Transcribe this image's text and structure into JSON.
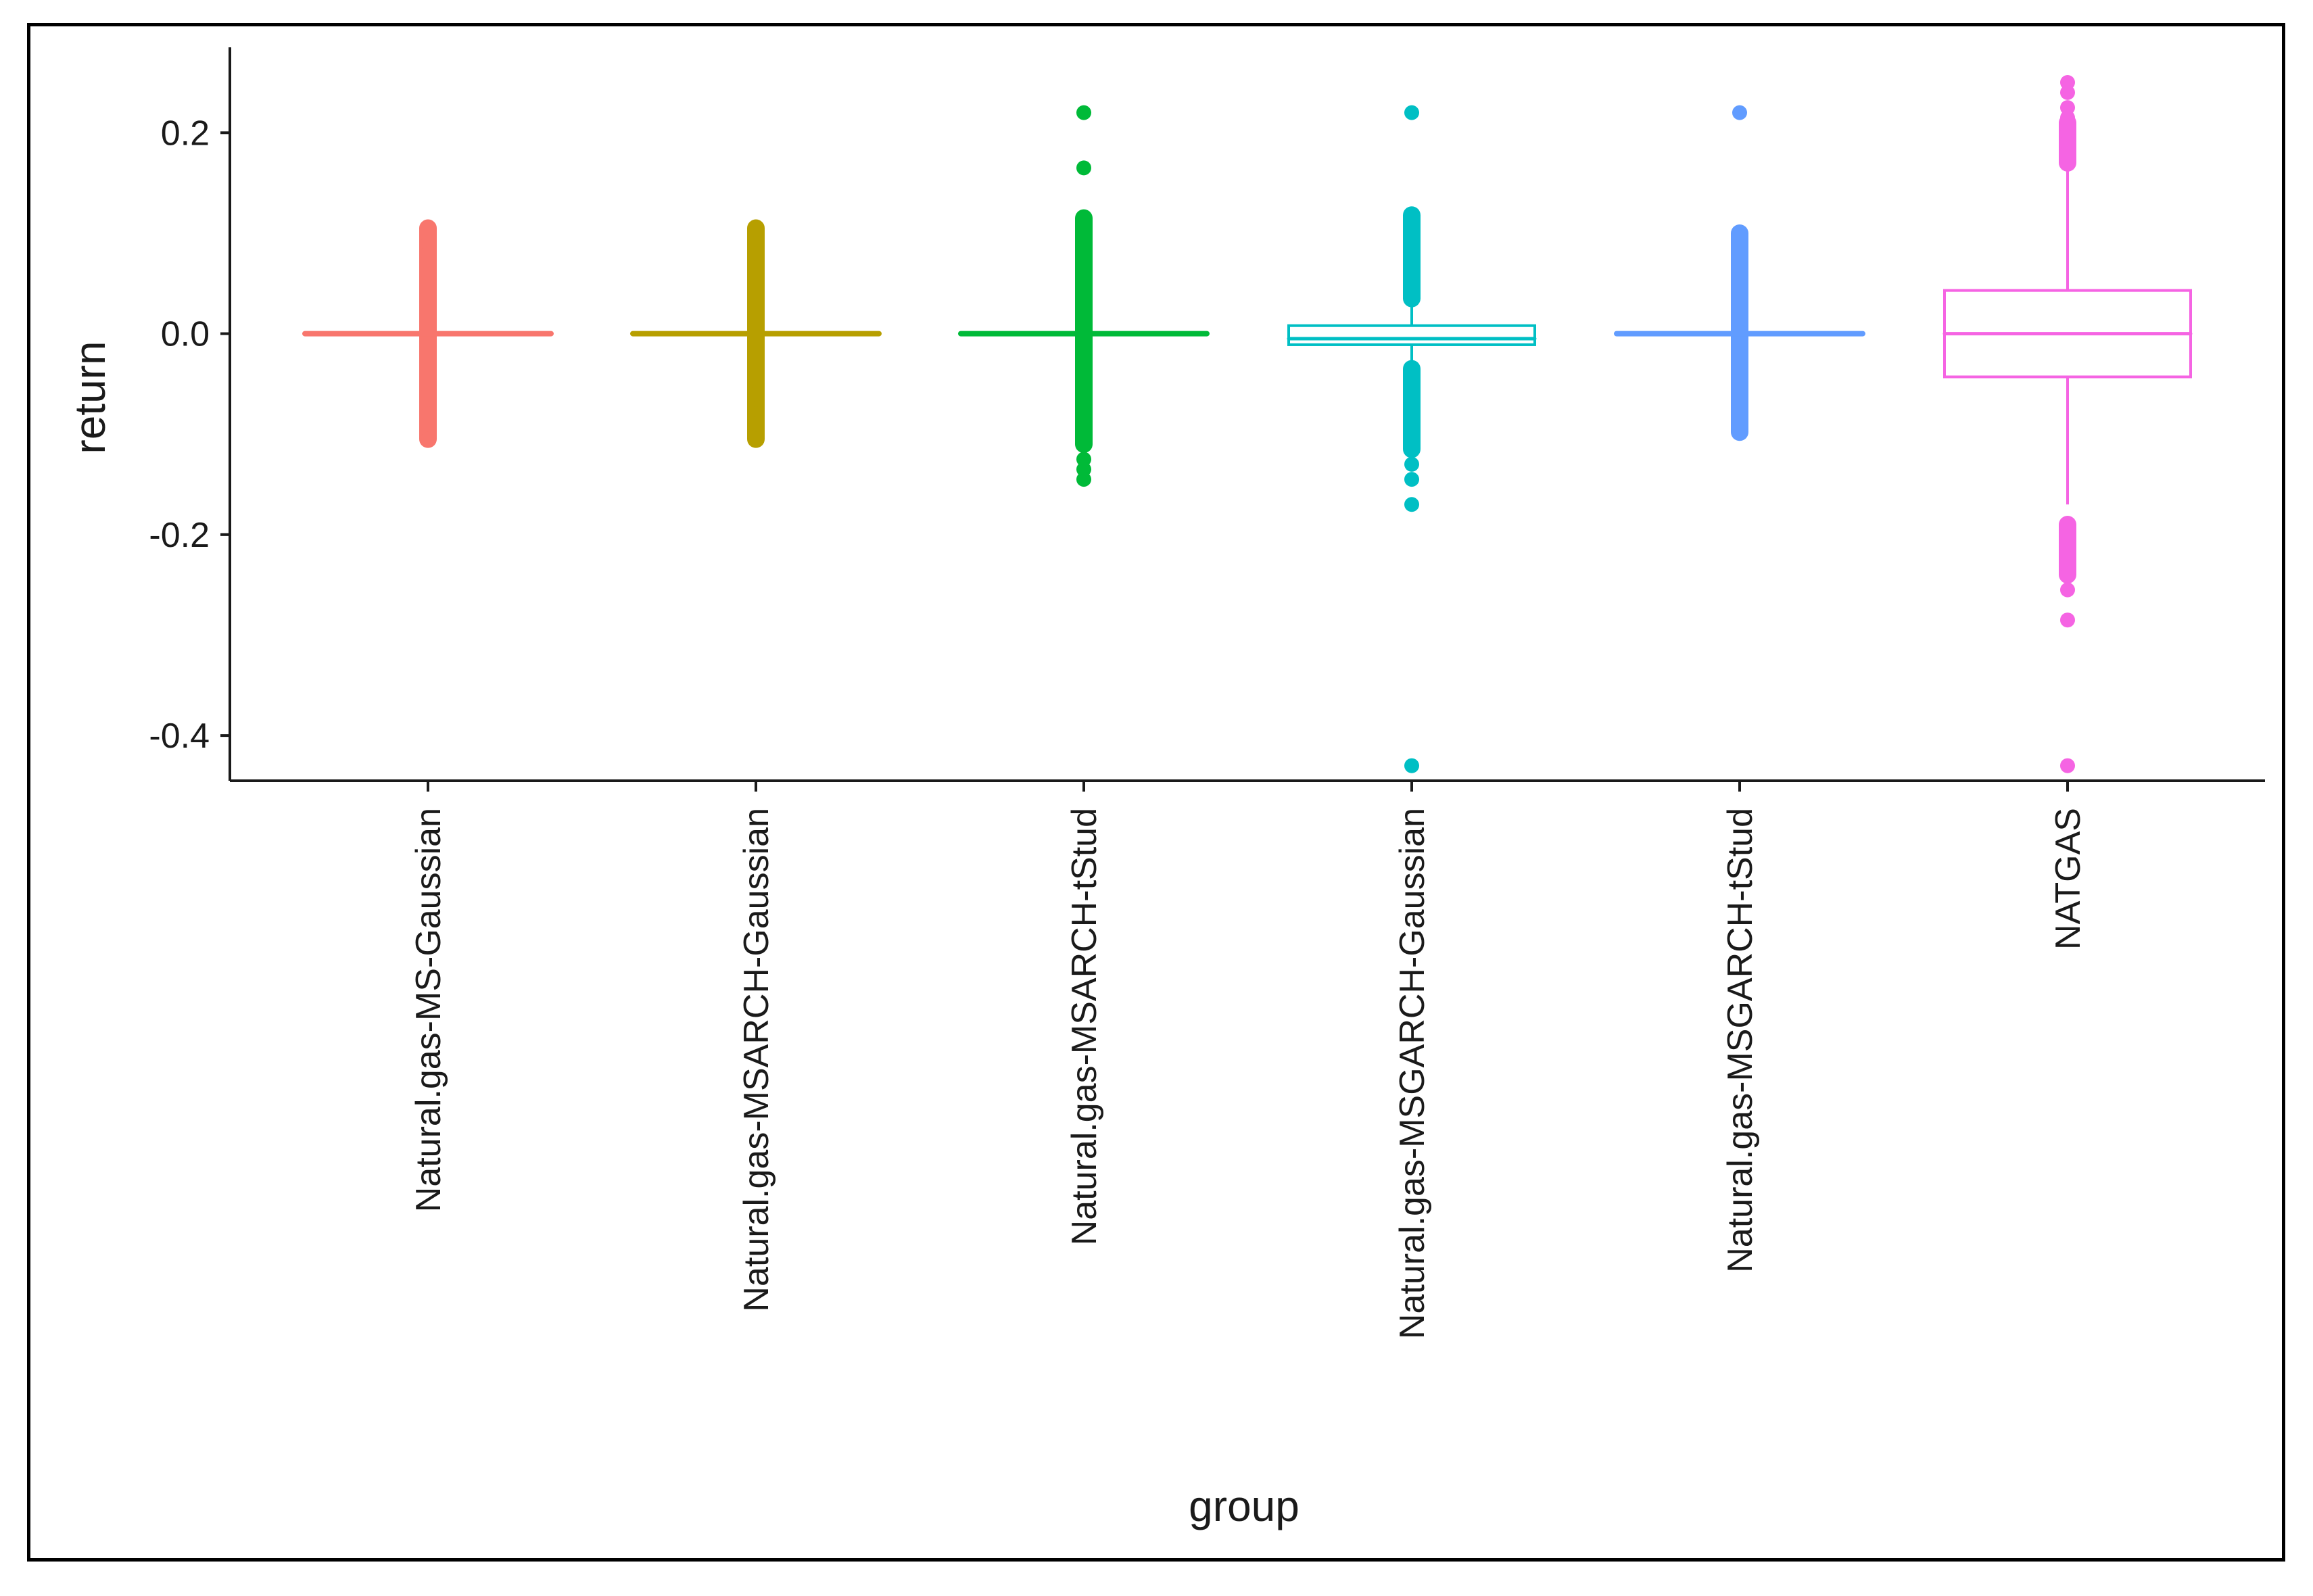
{
  "chart_data": {
    "type": "boxplot",
    "title": "",
    "xlabel": "group",
    "ylabel": "return",
    "ylim": [
      -0.445,
      0.285
    ],
    "yticks": [
      0.2,
      0.0,
      -0.2,
      -0.4
    ],
    "ytick_labels": [
      "0.2",
      "0.0",
      "-0.2",
      "-0.4"
    ],
    "grid": false,
    "legend": "none",
    "categories": [
      "Natural.gas-MS-Gaussian",
      "Natural.gas-MSARCH-Gaussian",
      "Natural.gas-MSARCH-tStud",
      "Natural.gas-MSGARCH-Gaussian",
      "Natural.gas-MSGARCH-tStud",
      "NATGAS"
    ],
    "series": [
      {
        "name": "Natural.gas-MS-Gaussian",
        "color": "#F8766D",
        "q1": 0.0,
        "median": 0.0,
        "q3": 0.0,
        "whisker_low": 0.0,
        "whisker_high": 0.0,
        "outlier_ranges": [
          [
            0.0,
            0.105
          ],
          [
            -0.105,
            0.0
          ]
        ],
        "outliers": [
          0.105,
          0.09,
          0.08,
          0.06,
          -0.06,
          -0.08,
          -0.09,
          -0.105
        ]
      },
      {
        "name": "Natural.gas-MSARCH-Gaussian",
        "color": "#B79F00",
        "q1": 0.0,
        "median": 0.0,
        "q3": 0.0,
        "whisker_low": 0.0,
        "whisker_high": 0.0,
        "outlier_ranges": [
          [
            0.0,
            0.105
          ],
          [
            -0.105,
            0.0
          ]
        ],
        "outliers": [
          0.105,
          0.09,
          0.08,
          0.06,
          -0.06,
          -0.08,
          -0.09,
          -0.105
        ]
      },
      {
        "name": "Natural.gas-MSARCH-tStud",
        "color": "#00BA38",
        "q1": 0.0,
        "median": 0.0,
        "q3": 0.0,
        "whisker_low": 0.0,
        "whisker_high": 0.0,
        "outlier_ranges": [
          [
            0.0,
            0.115
          ],
          [
            -0.11,
            0.0
          ]
        ],
        "outliers": [
          0.22,
          0.165,
          0.115,
          0.1,
          -0.125,
          -0.135,
          -0.145
        ]
      },
      {
        "name": "Natural.gas-MSGARCH-Gaussian",
        "color": "#00BFC4",
        "q1": -0.011,
        "median": -0.005,
        "q3": 0.008,
        "whisker_low": -0.032,
        "whisker_high": 0.03,
        "outlier_ranges": [
          [
            0.035,
            0.118
          ],
          [
            -0.115,
            -0.035
          ]
        ],
        "outliers": [
          0.22,
          -0.13,
          -0.145,
          -0.17,
          -0.43
        ]
      },
      {
        "name": "Natural.gas-MSGARCH-tStud",
        "color": "#619CFF",
        "q1": 0.0,
        "median": 0.0,
        "q3": 0.0,
        "whisker_low": 0.0,
        "whisker_high": 0.0,
        "outlier_ranges": [
          [
            0.0,
            0.1
          ],
          [
            -0.098,
            0.0
          ]
        ],
        "outliers": [
          0.22,
          0.1,
          -0.098
        ]
      },
      {
        "name": "NATGAS",
        "color": "#F564E3",
        "q1": -0.043,
        "median": 0.0,
        "q3": 0.043,
        "whisker_low": -0.17,
        "whisker_high": 0.17,
        "outlier_ranges": [
          [
            0.17,
            0.21
          ],
          [
            -0.24,
            -0.19
          ]
        ],
        "outliers": [
          0.25,
          0.24,
          0.225,
          0.215,
          0.2,
          0.19,
          0.18,
          -0.19,
          -0.2,
          -0.21,
          -0.24,
          -0.255,
          -0.285,
          -0.43
        ]
      }
    ]
  }
}
